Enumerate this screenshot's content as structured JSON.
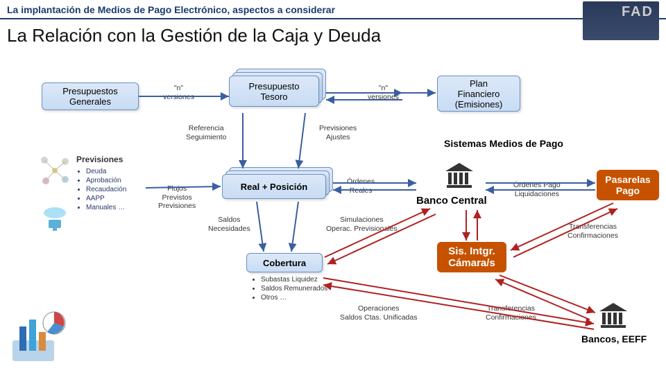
{
  "header": {
    "title": "La implantación de Medios de Pago Electrónico, aspectos a considerar",
    "subtitle": "La Relación con la Gestión de la Caja y Deuda",
    "logo_text": "FAD"
  },
  "nodes": {
    "presupuestos_generales": "Presupuestos\nGenerales",
    "presupuesto_tesoro": "Presupuesto\nTesoro",
    "plan_financiero": "Plan\nFinanciero\n(Emisiones)",
    "real_posicion": "Real + Posición",
    "cobertura": "Cobertura",
    "banco_central": "Banco Central",
    "sis_intgr": "Sis. Intgr.\nCámara/s",
    "bancos_eeff": "Bancos, EEFF",
    "pasarelas_pago": "Pasarelas\nPago",
    "sistemas_medios": "Sistemas Medios de Pago"
  },
  "labels": {
    "n_versiones_1": "\"n\"\nversiones",
    "n_versiones_2": "\"n\"\nversiones",
    "referencia": "Referencia\nSeguimiento",
    "previsiones_ajustes": "Previsiones\nAjustes",
    "flujos": "Flujos\nPrevistos\nPrevisiones",
    "ordenes_reales": "Órdenes\nReales",
    "saldos_necesidades": "Saldos\nNecesidades",
    "simulaciones": "Simulaciones\nOperac. Previsionales",
    "ordenes_pago": "Órdenes Pago\nLiquidaciones",
    "transferencias1": "Transferencias\nConfirmaciones",
    "operaciones": "Operaciones\nSaldos Ctas. Unificadas",
    "transferencias2": "Transferencias\nConfirmaciones"
  },
  "previsiones": {
    "heading": "Previsiones",
    "items": [
      "Deuda",
      "Aprobación",
      "Recaudación",
      "AAPP",
      "Manuales …"
    ]
  },
  "cobertura_items": [
    "Subastas Liquidez",
    "Saldos Remunerados",
    "Otros …"
  ],
  "colors": {
    "title": "#1a3a6e",
    "box_blue_bg1": "#dce8f8",
    "box_blue_bg2": "#c8dcf4",
    "box_border": "#6b8fc1",
    "orange": "#c65200",
    "arrow_blue": "#3a5fa0",
    "arrow_red": "#b02020"
  },
  "font_sizes": {
    "title": 14,
    "subtitle": 26,
    "node": 13,
    "small": 10.5
  }
}
